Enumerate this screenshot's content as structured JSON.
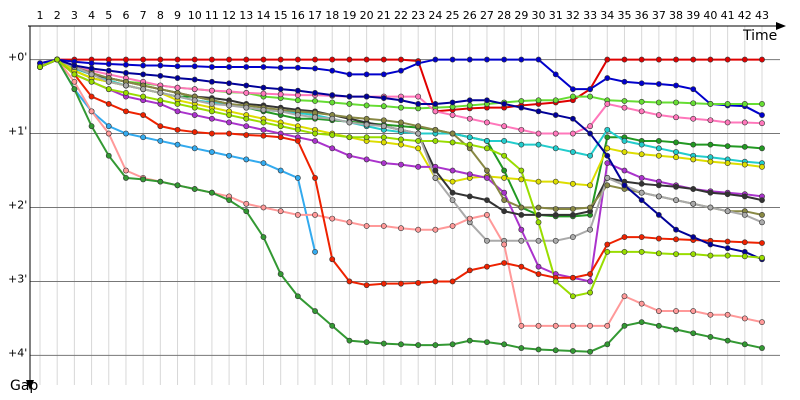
{
  "chart_data": {
    "type": "line",
    "x_label": "Time",
    "y_label": "Gap",
    "x": [
      1,
      2,
      3,
      4,
      5,
      6,
      7,
      8,
      9,
      10,
      11,
      12,
      13,
      14,
      15,
      16,
      17,
      18,
      19,
      20,
      21,
      22,
      23,
      24,
      25,
      26,
      27,
      28,
      29,
      30,
      31,
      32,
      33,
      34,
      35,
      36,
      37,
      38,
      39,
      40,
      41,
      42,
      43
    ],
    "xlim": [
      1,
      43
    ],
    "xticks": [
      1,
      2,
      3,
      4,
      5,
      6,
      7,
      8,
      9,
      10,
      11,
      12,
      13,
      14,
      15,
      16,
      17,
      18,
      19,
      20,
      21,
      22,
      23,
      24,
      25,
      26,
      27,
      28,
      29,
      30,
      31,
      32,
      33,
      34,
      35,
      36,
      37,
      38,
      39,
      40,
      41,
      42,
      43
    ],
    "ylim": [
      -0.4,
      4.4
    ],
    "yticks": [
      {
        "value": 0,
        "label": "+0'"
      },
      {
        "value": 1,
        "label": "+1'"
      },
      {
        "value": 2,
        "label": "+2'"
      },
      {
        "value": 3,
        "label": "+3'"
      },
      {
        "value": 4,
        "label": "+4'"
      }
    ],
    "grid": true,
    "series": [
      {
        "color": "#e00000",
        "values": [
          0.05,
          0,
          0,
          0,
          0,
          0,
          0,
          0,
          0,
          0,
          0,
          0,
          0,
          0,
          0,
          0,
          0,
          0,
          0,
          0,
          0,
          0,
          0.02,
          0.7,
          0.68,
          0.66,
          0.65,
          0.65,
          0.62,
          0.6,
          0.58,
          0.55,
          0.4,
          0,
          0,
          0,
          0,
          0,
          0,
          0,
          0,
          0,
          0
        ]
      },
      {
        "color": "#0000cc",
        "values": [
          0.05,
          0,
          0.03,
          0.05,
          0.06,
          0.07,
          0.08,
          0.08,
          0.09,
          0.09,
          0.1,
          0.1,
          0.1,
          0.1,
          0.11,
          0.11,
          0.12,
          0.15,
          0.2,
          0.2,
          0.2,
          0.15,
          0.05,
          0,
          0,
          0,
          0,
          0,
          0,
          0,
          0.2,
          0.4,
          0.4,
          0.25,
          0.3,
          0.32,
          0.33,
          0.35,
          0.4,
          0.6,
          0.62,
          0.63,
          0.75
        ]
      },
      {
        "color": "#66dd33",
        "values": [
          0.1,
          0,
          0.1,
          0.2,
          0.25,
          0.3,
          0.32,
          0.35,
          0.38,
          0.4,
          0.42,
          0.44,
          0.45,
          0.5,
          0.52,
          0.55,
          0.56,
          0.58,
          0.6,
          0.62,
          0.63,
          0.65,
          0.66,
          0.65,
          0.64,
          0.62,
          0.6,
          0.58,
          0.56,
          0.55,
          0.55,
          0.5,
          0.5,
          0.55,
          0.56,
          0.57,
          0.58,
          0.58,
          0.59,
          0.6,
          0.6,
          0.6,
          0.6
        ]
      },
      {
        "color": "#ff77bb",
        "values": [
          0.1,
          0,
          0.1,
          0.15,
          0.2,
          0.25,
          0.3,
          0.35,
          0.38,
          0.4,
          0.42,
          0.43,
          0.45,
          0.46,
          0.47,
          0.48,
          0.48,
          0.49,
          0.5,
          0.5,
          0.5,
          0.5,
          0.5,
          0.7,
          0.75,
          0.8,
          0.85,
          0.9,
          0.95,
          1.0,
          1.0,
          1.0,
          0.9,
          0.6,
          0.65,
          0.7,
          0.75,
          0.78,
          0.8,
          0.82,
          0.85,
          0.85,
          0.86
        ]
      },
      {
        "color": "#229922",
        "values": [
          0.1,
          0,
          0.15,
          0.25,
          0.3,
          0.35,
          0.4,
          0.45,
          0.5,
          0.5,
          0.55,
          0.6,
          0.65,
          0.7,
          0.75,
          0.8,
          0.8,
          0.82,
          0.84,
          0.86,
          0.88,
          0.9,
          0.92,
          0.95,
          1.0,
          1.05,
          1.1,
          1.5,
          2.0,
          2.1,
          2.12,
          2.12,
          2.1,
          1.05,
          1.05,
          1.1,
          1.1,
          1.12,
          1.15,
          1.15,
          1.17,
          1.18,
          1.2
        ]
      },
      {
        "color": "#22cccc",
        "values": [
          0.1,
          0,
          0.12,
          0.2,
          0.28,
          0.35,
          0.4,
          0.45,
          0.5,
          0.55,
          0.58,
          0.6,
          0.65,
          0.68,
          0.7,
          0.72,
          0.75,
          0.8,
          0.85,
          0.9,
          0.95,
          0.98,
          1.0,
          1.0,
          1.0,
          1.05,
          1.1,
          1.1,
          1.15,
          1.15,
          1.2,
          1.25,
          1.3,
          0.95,
          1.1,
          1.15,
          1.2,
          1.25,
          1.3,
          1.32,
          1.35,
          1.38,
          1.4
        ]
      },
      {
        "color": "#dddd00",
        "values": [
          0.1,
          0,
          0.15,
          0.25,
          0.3,
          0.35,
          0.4,
          0.45,
          0.55,
          0.6,
          0.65,
          0.7,
          0.75,
          0.8,
          0.85,
          0.9,
          0.95,
          1.0,
          1.05,
          1.1,
          1.12,
          1.15,
          1.2,
          1.6,
          1.65,
          1.6,
          1.58,
          1.6,
          1.62,
          1.65,
          1.65,
          1.68,
          1.7,
          1.2,
          1.25,
          1.28,
          1.3,
          1.32,
          1.35,
          1.38,
          1.4,
          1.42,
          1.45
        ]
      },
      {
        "color": "#aa33cc",
        "values": [
          0.1,
          0,
          0.2,
          0.3,
          0.4,
          0.5,
          0.55,
          0.6,
          0.7,
          0.75,
          0.8,
          0.85,
          0.9,
          0.95,
          1.0,
          1.05,
          1.1,
          1.2,
          1.3,
          1.35,
          1.4,
          1.42,
          1.45,
          1.45,
          1.5,
          1.55,
          1.6,
          1.8,
          2.3,
          2.8,
          2.9,
          2.95,
          3.0,
          1.4,
          1.5,
          1.6,
          1.65,
          1.7,
          1.75,
          1.78,
          1.8,
          1.82,
          1.85
        ]
      },
      {
        "color": "#333333",
        "values": [
          0.1,
          0,
          0.1,
          0.2,
          0.25,
          0.3,
          0.35,
          0.4,
          0.45,
          0.5,
          0.52,
          0.55,
          0.6,
          0.62,
          0.65,
          0.68,
          0.7,
          0.75,
          0.8,
          0.85,
          0.9,
          0.95,
          1.0,
          1.5,
          1.8,
          1.85,
          1.9,
          2.05,
          2.1,
          2.1,
          2.1,
          2.1,
          2.05,
          1.6,
          1.65,
          1.68,
          1.7,
          1.72,
          1.75,
          1.8,
          1.82,
          1.85,
          1.9
        ]
      },
      {
        "color": "#888844",
        "values": [
          0.1,
          0,
          0.1,
          0.18,
          0.25,
          0.3,
          0.35,
          0.4,
          0.45,
          0.5,
          0.55,
          0.6,
          0.62,
          0.65,
          0.68,
          0.7,
          0.72,
          0.75,
          0.78,
          0.8,
          0.82,
          0.85,
          0.9,
          0.95,
          1.0,
          1.2,
          1.5,
          1.9,
          2.0,
          2.0,
          2.02,
          2.02,
          2.0,
          1.7,
          1.75,
          1.8,
          1.85,
          1.9,
          1.95,
          2.0,
          2.05,
          2.05,
          2.1
        ]
      },
      {
        "color": "#aaaaaa",
        "values": [
          0.1,
          0,
          0.1,
          0.2,
          0.3,
          0.35,
          0.4,
          0.45,
          0.5,
          0.55,
          0.6,
          0.62,
          0.65,
          0.68,
          0.7,
          0.75,
          0.78,
          0.8,
          0.85,
          0.88,
          0.9,
          0.95,
          1.0,
          1.6,
          1.9,
          2.2,
          2.45,
          2.45,
          2.45,
          2.45,
          2.45,
          2.4,
          2.3,
          1.6,
          1.7,
          1.8,
          1.85,
          1.9,
          1.95,
          2.0,
          2.05,
          2.1,
          2.2
        ]
      },
      {
        "color": "#33aaee",
        "values": [
          0.1,
          0,
          0.4,
          0.7,
          0.9,
          1.0,
          1.05,
          1.1,
          1.15,
          1.2,
          1.25,
          1.3,
          1.35,
          1.4,
          1.5,
          1.6,
          2.6,
          null,
          null,
          null,
          null,
          null,
          null,
          null,
          null,
          null,
          null,
          null,
          null,
          null,
          null,
          null,
          null,
          null,
          null,
          null,
          null,
          null,
          null,
          null,
          null,
          null,
          null
        ]
      },
      {
        "color": "#ff9999",
        "values": [
          0.1,
          0,
          0.3,
          0.7,
          1.0,
          1.5,
          1.6,
          1.65,
          1.7,
          1.75,
          1.8,
          1.85,
          1.95,
          2.0,
          2.05,
          2.1,
          2.1,
          2.15,
          2.2,
          2.25,
          2.25,
          2.28,
          2.3,
          2.3,
          2.25,
          2.15,
          2.1,
          2.5,
          3.6,
          3.6,
          3.6,
          3.6,
          3.6,
          3.6,
          3.2,
          3.3,
          3.4,
          3.4,
          3.4,
          3.45,
          3.45,
          3.5,
          3.55
        ]
      },
      {
        "color": "#339933",
        "values": [
          0.1,
          0,
          0.4,
          0.9,
          1.3,
          1.6,
          1.62,
          1.65,
          1.7,
          1.75,
          1.8,
          1.9,
          2.05,
          2.4,
          2.9,
          3.2,
          3.4,
          3.6,
          3.8,
          3.82,
          3.84,
          3.85,
          3.86,
          3.86,
          3.85,
          3.8,
          3.82,
          3.85,
          3.9,
          3.92,
          3.93,
          3.94,
          3.95,
          3.85,
          3.6,
          3.55,
          3.6,
          3.65,
          3.7,
          3.75,
          3.8,
          3.85,
          3.9
        ]
      },
      {
        "color": "#ee2200",
        "values": [
          0.1,
          0,
          0.2,
          0.5,
          0.6,
          0.7,
          0.75,
          0.9,
          0.95,
          0.98,
          1.0,
          1.0,
          1.02,
          1.03,
          1.05,
          1.1,
          1.6,
          2.7,
          3.0,
          3.05,
          3.03,
          3.03,
          3.02,
          3.0,
          3.0,
          2.85,
          2.8,
          2.75,
          2.8,
          2.9,
          2.95,
          2.95,
          2.9,
          2.5,
          2.4,
          2.4,
          2.42,
          2.43,
          2.44,
          2.45,
          2.46,
          2.47,
          2.48
        ]
      },
      {
        "color": "#000099",
        "values": [
          0.1,
          0,
          0.08,
          0.12,
          0.15,
          0.18,
          0.2,
          0.22,
          0.25,
          0.27,
          0.3,
          0.32,
          0.35,
          0.38,
          0.4,
          0.42,
          0.45,
          0.48,
          0.5,
          0.5,
          0.52,
          0.55,
          0.6,
          0.6,
          0.58,
          0.55,
          0.55,
          0.6,
          0.65,
          0.7,
          0.75,
          0.8,
          1.0,
          1.3,
          1.7,
          1.9,
          2.1,
          2.3,
          2.4,
          2.5,
          2.55,
          2.6,
          2.7
        ]
      },
      {
        "color": "#99dd00",
        "values": [
          0.1,
          0,
          0.2,
          0.3,
          0.4,
          0.45,
          0.5,
          0.55,
          0.6,
          0.65,
          0.7,
          0.75,
          0.8,
          0.85,
          0.9,
          0.95,
          1.0,
          1.02,
          1.05,
          1.05,
          1.05,
          1.08,
          1.1,
          1.1,
          1.12,
          1.15,
          1.2,
          1.3,
          1.5,
          2.2,
          3.0,
          3.2,
          3.15,
          2.6,
          2.6,
          2.6,
          2.62,
          2.63,
          2.63,
          2.65,
          2.65,
          2.66,
          2.68
        ]
      }
    ]
  }
}
